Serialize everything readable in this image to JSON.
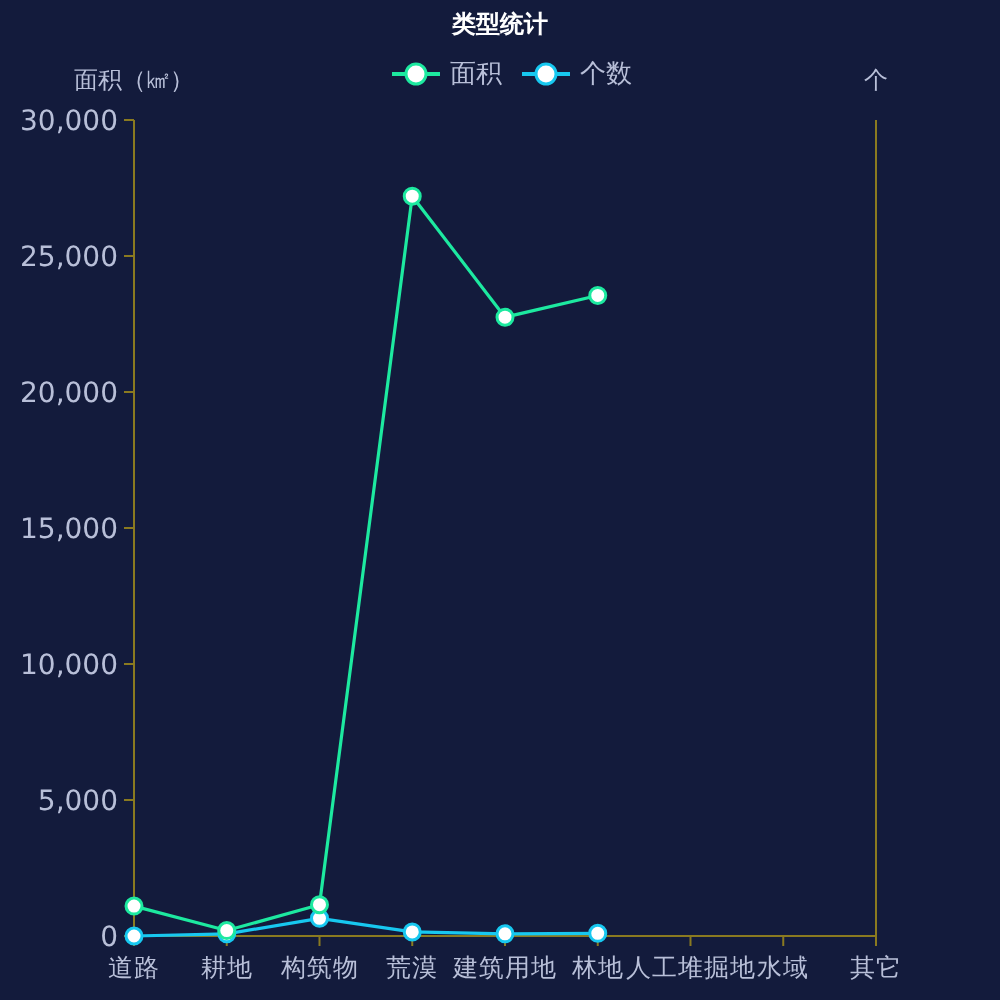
{
  "chart_data": {
    "type": "line",
    "title": "类型统计",
    "ylabel": "面积（㎢）",
    "y2label": "个",
    "categories": [
      "道路",
      "耕地",
      "构筑物",
      "荒漠",
      "建筑用地",
      "林地",
      "人工堆掘地",
      "水域",
      "其它"
    ],
    "series": [
      {
        "name": "面积",
        "color": "#1de9a0",
        "values": [
          1100,
          200,
          1150,
          27200,
          22750,
          23550,
          null,
          null,
          null
        ]
      },
      {
        "name": "个数",
        "color": "#17c8f0",
        "values": [
          0,
          80,
          650,
          150,
          80,
          100,
          null,
          null,
          null
        ]
      }
    ],
    "ylim": [
      0,
      30000
    ],
    "yticks": [
      {
        "value": 0,
        "label": "0"
      },
      {
        "value": 5000,
        "label": "5,000"
      },
      {
        "value": 10000,
        "label": "10,000"
      },
      {
        "value": 15000,
        "label": "15,000"
      },
      {
        "value": 20000,
        "label": "20,000"
      },
      {
        "value": 25000,
        "label": "25,000"
      },
      {
        "value": 30000,
        "label": "30,000"
      }
    ],
    "marker": "circle",
    "legend": "top",
    "grid": false
  }
}
